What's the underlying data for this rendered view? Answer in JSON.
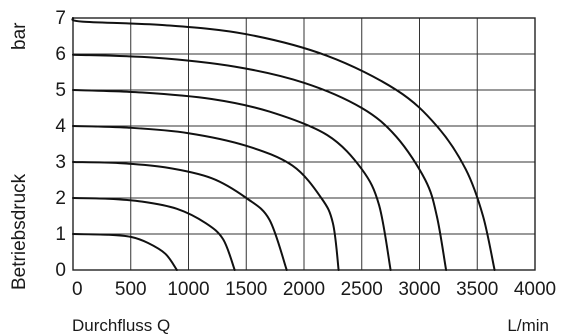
{
  "chart_data": {
    "type": "line",
    "ylabel_unit": "bar",
    "ylabel": "Betriebsdruck",
    "xlabel": "Durchfluss Q",
    "xlabel_unit": "L/min",
    "xlim": [
      0,
      4000
    ],
    "ylim": [
      0,
      7
    ],
    "xticks": [
      0,
      500,
      1000,
      1500,
      2000,
      2500,
      3000,
      3500,
      4000
    ],
    "yticks": [
      0,
      1,
      2,
      3,
      4,
      5,
      6,
      7
    ],
    "grid": true,
    "series": [
      {
        "values": [
          [
            0,
            1.0
          ],
          [
            300,
            0.98
          ],
          [
            500,
            0.92
          ],
          [
            650,
            0.75
          ],
          [
            800,
            0.45
          ],
          [
            900,
            0.0
          ]
        ]
      },
      {
        "values": [
          [
            0,
            2.0
          ],
          [
            300,
            1.98
          ],
          [
            600,
            1.9
          ],
          [
            900,
            1.7
          ],
          [
            1150,
            1.3
          ],
          [
            1300,
            0.85
          ],
          [
            1400,
            0.0
          ]
        ]
      },
      {
        "values": [
          [
            0,
            3.0
          ],
          [
            400,
            2.97
          ],
          [
            800,
            2.85
          ],
          [
            1200,
            2.55
          ],
          [
            1500,
            2.0
          ],
          [
            1700,
            1.4
          ],
          [
            1850,
            0.0
          ]
        ]
      },
      {
        "values": [
          [
            0,
            4.0
          ],
          [
            500,
            3.95
          ],
          [
            1000,
            3.8
          ],
          [
            1500,
            3.45
          ],
          [
            1900,
            2.9
          ],
          [
            2150,
            2.0
          ],
          [
            2250,
            1.3
          ],
          [
            2300,
            0.0
          ]
        ]
      },
      {
        "values": [
          [
            0,
            5.0
          ],
          [
            600,
            4.93
          ],
          [
            1200,
            4.75
          ],
          [
            1700,
            4.4
          ],
          [
            2200,
            3.75
          ],
          [
            2500,
            2.8
          ],
          [
            2650,
            1.8
          ],
          [
            2750,
            0.0
          ]
        ]
      },
      {
        "values": [
          [
            0,
            5.98
          ],
          [
            700,
            5.9
          ],
          [
            1400,
            5.65
          ],
          [
            2000,
            5.2
          ],
          [
            2500,
            4.5
          ],
          [
            2800,
            3.7
          ],
          [
            3050,
            2.5
          ],
          [
            3150,
            1.5
          ],
          [
            3230,
            0.0
          ]
        ]
      },
      {
        "values": [
          [
            0,
            7.0
          ],
          [
            80,
            6.9
          ],
          [
            800,
            6.8
          ],
          [
            1500,
            6.55
          ],
          [
            2200,
            5.95
          ],
          [
            2800,
            5.0
          ],
          [
            3150,
            4.0
          ],
          [
            3400,
            2.8
          ],
          [
            3550,
            1.5
          ],
          [
            3650,
            0.0
          ]
        ]
      }
    ]
  }
}
